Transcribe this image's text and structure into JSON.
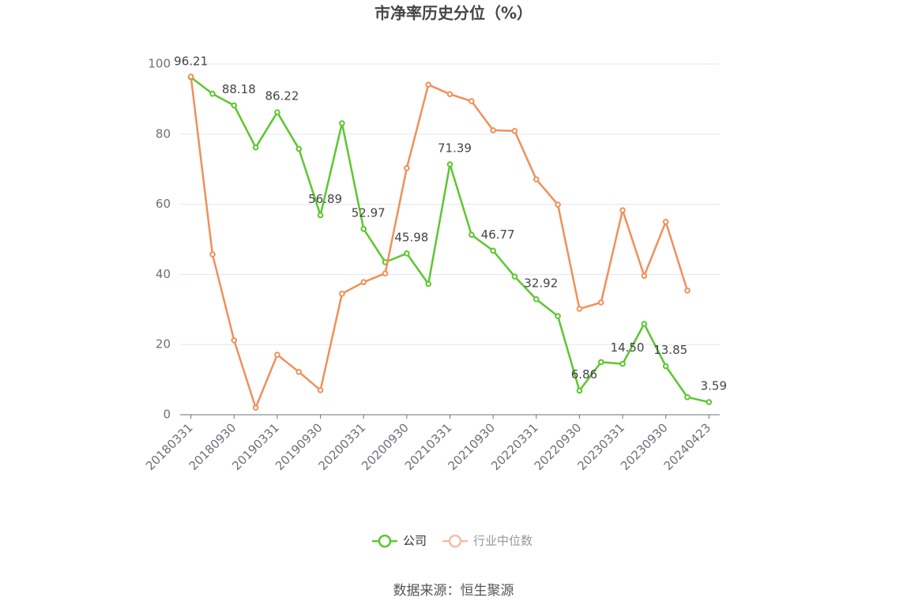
{
  "chart_data": {
    "type": "line",
    "title": "市净率历史分位（%）",
    "categories": [
      "20180331",
      null,
      "20180930",
      null,
      "20190331",
      null,
      "20190930",
      null,
      "20200331",
      null,
      "20200930",
      null,
      "20210331",
      null,
      "20210930",
      null,
      "20220331",
      null,
      "20220930",
      null,
      "20230331",
      null,
      "20230930",
      null,
      "20240423"
    ],
    "series": [
      {
        "name": "公司",
        "color": "#5cc72e",
        "values": [
          96.21,
          91.5,
          88.18,
          76.2,
          86.22,
          75.8,
          56.89,
          83.1,
          52.97,
          43.5,
          45.98,
          37.3,
          71.39,
          51.3,
          46.77,
          39.4,
          32.92,
          28.1,
          6.86,
          15.0,
          14.5,
          25.9,
          13.85,
          5.0,
          3.59
        ],
        "value_labels": [
          "96.21",
          null,
          "88.18",
          null,
          "86.22",
          null,
          "56.89",
          null,
          "52.97",
          null,
          "45.98",
          null,
          "71.39",
          null,
          "46.77",
          null,
          "32.92",
          null,
          "6.86",
          null,
          "14.50",
          null,
          "13.85",
          null,
          "3.59"
        ]
      },
      {
        "name": "行业中位数",
        "color": "#f0905a",
        "values": [
          96.4,
          45.7,
          21.2,
          2.0,
          17.1,
          12.2,
          7.0,
          34.5,
          37.8,
          40.3,
          70.3,
          94.1,
          91.4,
          89.4,
          81.1,
          80.9,
          67.1,
          59.9,
          30.2,
          32.0,
          58.3,
          39.6,
          55.0,
          35.4,
          null
        ]
      }
    ],
    "ylim": [
      0,
      100
    ],
    "yticks": [
      0,
      20,
      40,
      60,
      80,
      100
    ],
    "grid": true,
    "legend": "bottom",
    "source": "数据来源：恒生聚源"
  }
}
